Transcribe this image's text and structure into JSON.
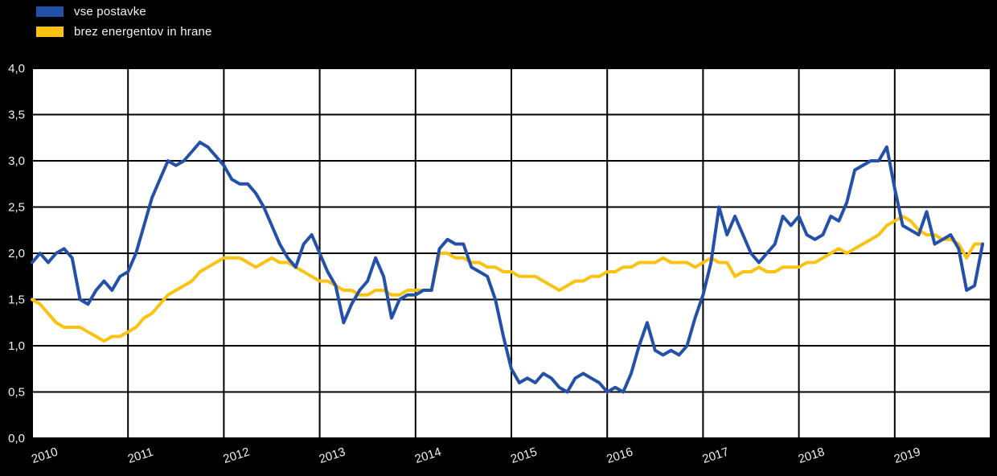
{
  "page": {
    "background": "#000000",
    "plot_background": "#ffffff"
  },
  "legend": {
    "items": [
      {
        "label": "vse postavke",
        "color": "#2350A8"
      },
      {
        "label": "brez energentov in hrane",
        "color": "#FCC211"
      }
    ]
  },
  "chart_data": {
    "type": "line",
    "title": "",
    "xlabel": "",
    "ylabel": "",
    "x_unit": "month",
    "x_start_year": 2010,
    "x_tick_labels": [
      "2010",
      "2011",
      "2012",
      "2013",
      "2014",
      "2015",
      "2016",
      "2017",
      "2018",
      "2019"
    ],
    "y_tick_labels": [
      "0,0",
      "0,5",
      "1,0",
      "1,5",
      "2,0",
      "2,5",
      "3,0",
      "3,5",
      "4,0"
    ],
    "ylim": [
      0,
      4
    ],
    "grid": true,
    "grid_color": "#000000",
    "plot_bg": "#ffffff",
    "legend_position": "top-left",
    "series": [
      {
        "name": "vse postavke",
        "color": "#2350A8",
        "values": [
          1.9,
          2.0,
          1.9,
          2.0,
          2.05,
          1.95,
          1.5,
          1.45,
          1.6,
          1.7,
          1.6,
          1.75,
          1.8,
          2.0,
          2.3,
          2.6,
          2.8,
          3.0,
          2.95,
          3.0,
          3.1,
          3.2,
          3.15,
          3.05,
          2.95,
          2.8,
          2.75,
          2.75,
          2.65,
          2.5,
          2.3,
          2.1,
          1.95,
          1.85,
          2.1,
          2.2,
          2.0,
          1.8,
          1.65,
          1.25,
          1.45,
          1.6,
          1.7,
          1.95,
          1.75,
          1.3,
          1.5,
          1.55,
          1.55,
          1.6,
          1.6,
          2.05,
          2.15,
          2.1,
          2.1,
          1.85,
          1.8,
          1.75,
          1.5,
          1.1,
          0.75,
          0.6,
          0.65,
          0.6,
          0.7,
          0.65,
          0.55,
          0.5,
          0.65,
          0.7,
          0.65,
          0.6,
          0.5,
          0.55,
          0.5,
          0.7,
          1.0,
          1.25,
          0.95,
          0.9,
          0.95,
          0.9,
          1.0,
          1.3,
          1.55,
          1.9,
          2.5,
          2.2,
          2.4,
          2.2,
          2.0,
          1.9,
          2.0,
          2.1,
          2.4,
          2.3,
          2.4,
          2.2,
          2.15,
          2.2,
          2.4,
          2.35,
          2.55,
          2.9,
          2.95,
          3.0,
          3.0,
          3.15,
          2.7,
          2.3,
          2.25,
          2.2,
          2.45,
          2.1,
          2.15,
          2.2,
          2.05,
          1.6,
          1.65,
          2.1
        ]
      },
      {
        "name": "brez energentov in hrane",
        "color": "#FCC211",
        "values": [
          1.5,
          1.45,
          1.35,
          1.25,
          1.2,
          1.2,
          1.2,
          1.15,
          1.1,
          1.05,
          1.1,
          1.1,
          1.15,
          1.2,
          1.3,
          1.35,
          1.45,
          1.55,
          1.6,
          1.65,
          1.7,
          1.8,
          1.85,
          1.9,
          1.95,
          1.95,
          1.95,
          1.9,
          1.85,
          1.9,
          1.95,
          1.9,
          1.9,
          1.85,
          1.8,
          1.75,
          1.7,
          1.7,
          1.65,
          1.6,
          1.6,
          1.55,
          1.55,
          1.6,
          1.6,
          1.55,
          1.55,
          1.6,
          1.6,
          1.6,
          1.6,
          2.0,
          2.0,
          1.95,
          1.95,
          1.9,
          1.9,
          1.85,
          1.85,
          1.8,
          1.8,
          1.75,
          1.75,
          1.75,
          1.7,
          1.65,
          1.6,
          1.65,
          1.7,
          1.7,
          1.75,
          1.75,
          1.8,
          1.8,
          1.85,
          1.85,
          1.9,
          1.9,
          1.9,
          1.95,
          1.9,
          1.9,
          1.9,
          1.85,
          1.9,
          1.95,
          1.9,
          1.9,
          1.75,
          1.8,
          1.8,
          1.85,
          1.8,
          1.8,
          1.85,
          1.85,
          1.85,
          1.9,
          1.9,
          1.95,
          2.0,
          2.05,
          2.0,
          2.05,
          2.1,
          2.15,
          2.2,
          2.3,
          2.35,
          2.4,
          2.35,
          2.25,
          2.2,
          2.2,
          2.15,
          2.15,
          2.1,
          1.95,
          2.1,
          2.1
        ]
      }
    ]
  }
}
